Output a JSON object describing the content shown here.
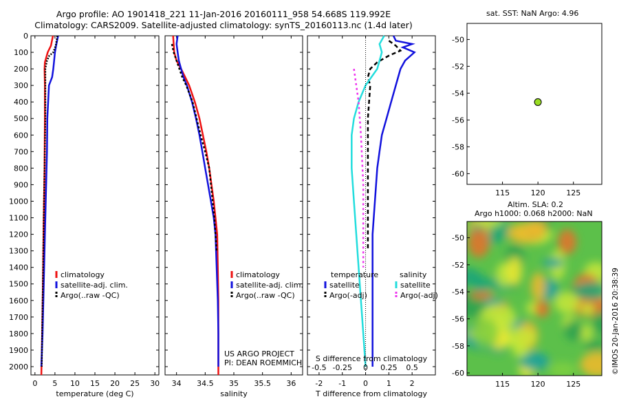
{
  "title_line1": "Argo profile: AO 1901418_221 11-Jan-2016 20160111_958 54.668S 119.992E",
  "title_line2": "Climatology: CARS2009. Satellite-adjusted climatology: synTS_20160113.nc (1.4d later)",
  "sst_title": "sat. SST: NaN Argo: 4.96",
  "sla_title_1": "Altim. SLA: 0.2",
  "sla_title_2": "Argo h1000: 0.068 h2000: NaN",
  "side_stamp": "©IMOS 20-Jan-2016 20:38:39",
  "project_line1": "US ARGO PROJECT",
  "project_line2": "PI: DEAN ROEMMICH",
  "colors": {
    "clim": "#ee1111",
    "sat": "#1111dd",
    "argo": "#000000",
    "sat_s": "#22dddd",
    "argo_s": "#ee33ee"
  },
  "chart_data": [
    {
      "type": "line",
      "panel": "temperature",
      "xlabel": "temperature (deg C)",
      "xlim": [
        -1,
        31
      ],
      "ylim": [
        2050,
        0
      ],
      "xticks": [
        "0",
        "5",
        "10",
        "15",
        "20",
        "25",
        "30"
      ],
      "yticks": [
        "0",
        "100",
        "200",
        "300",
        "400",
        "500",
        "600",
        "700",
        "800",
        "900",
        "1000",
        "1100",
        "1200",
        "1300",
        "1400",
        "1500",
        "1600",
        "1700",
        "1800",
        "1900",
        "2000"
      ],
      "legend": [
        "climatology",
        "satellite-adj. clim.",
        "Argo(..raw -QC)"
      ],
      "series": [
        {
          "name": "climatology",
          "color": "clim",
          "dash": "",
          "points": [
            [
              4.5,
              0
            ],
            [
              4.0,
              60
            ],
            [
              3.2,
              100
            ],
            [
              2.5,
              160
            ],
            [
              2.4,
              200
            ],
            [
              2.5,
              300
            ],
            [
              2.5,
              500
            ],
            [
              2.4,
              800
            ],
            [
              2.2,
              1100
            ],
            [
              2.0,
              1500
            ],
            [
              1.8,
              1800
            ],
            [
              1.6,
              2050
            ]
          ]
        },
        {
          "name": "satellite-adj. clim.",
          "color": "sat",
          "dash": "",
          "points": [
            [
              5.8,
              0
            ],
            [
              5.3,
              60
            ],
            [
              5.0,
              100
            ],
            [
              4.8,
              150
            ],
            [
              4.6,
              200
            ],
            [
              4.3,
              250
            ],
            [
              3.5,
              300
            ],
            [
              3.3,
              400
            ],
            [
              3.1,
              500
            ],
            [
              3.0,
              700
            ],
            [
              2.8,
              900
            ],
            [
              2.5,
              1200
            ],
            [
              2.2,
              1500
            ],
            [
              1.9,
              1800
            ],
            [
              1.6,
              2000
            ]
          ]
        },
        {
          "name": "Argo(..raw -QC)",
          "color": "argo",
          "dash": "2,2",
          "points": [
            [
              5.6,
              0
            ],
            [
              5.2,
              60
            ],
            [
              4.6,
              100
            ],
            [
              3.6,
              120
            ],
            [
              3.0,
              150
            ],
            [
              2.6,
              200
            ],
            [
              2.6,
              300
            ],
            [
              2.6,
              500
            ],
            [
              2.4,
              800
            ],
            [
              2.2,
              1100
            ],
            [
              2.0,
              1500
            ],
            [
              1.8,
              1800
            ],
            [
              1.7,
              2000
            ]
          ]
        }
      ]
    },
    {
      "type": "line",
      "panel": "salinity",
      "xlabel": "salinity",
      "xlim": [
        33.8,
        36.2
      ],
      "ylim": [
        2050,
        0
      ],
      "xticks": [
        "34",
        "34.5",
        "35",
        "35.5",
        "36"
      ],
      "legend": [
        "climatology",
        "satellite-adj. clim.",
        "Argo(..raw -QC)"
      ],
      "series": [
        {
          "name": "climatology",
          "color": "clim",
          "dash": "",
          "points": [
            [
              33.94,
              0
            ],
            [
              33.96,
              100
            ],
            [
              34.0,
              150
            ],
            [
              34.08,
              200
            ],
            [
              34.15,
              250
            ],
            [
              34.22,
              300
            ],
            [
              34.32,
              400
            ],
            [
              34.4,
              500
            ],
            [
              34.46,
              600
            ],
            [
              34.52,
              700
            ],
            [
              34.57,
              800
            ],
            [
              34.61,
              900
            ],
            [
              34.65,
              1000
            ],
            [
              34.68,
              1100
            ],
            [
              34.71,
              1200
            ],
            [
              34.72,
              1400
            ],
            [
              34.73,
              1600
            ],
            [
              34.73,
              1800
            ],
            [
              34.73,
              2050
            ]
          ]
        },
        {
          "name": "satellite-adj. clim.",
          "color": "sat",
          "dash": "",
          "points": [
            [
              34.02,
              0
            ],
            [
              34.0,
              50
            ],
            [
              34.02,
              100
            ],
            [
              34.04,
              150
            ],
            [
              34.08,
              200
            ],
            [
              34.12,
              250
            ],
            [
              34.18,
              300
            ],
            [
              34.27,
              400
            ],
            [
              34.34,
              500
            ],
            [
              34.4,
              600
            ],
            [
              34.45,
              700
            ],
            [
              34.5,
              800
            ],
            [
              34.55,
              900
            ],
            [
              34.6,
              1000
            ],
            [
              34.65,
              1100
            ],
            [
              34.68,
              1200
            ],
            [
              34.7,
              1400
            ],
            [
              34.72,
              1600
            ],
            [
              34.73,
              1800
            ],
            [
              34.73,
              2000
            ]
          ]
        },
        {
          "name": "Argo(..raw -QC)",
          "color": "argo",
          "dash": "3,3",
          "points": [
            [
              33.92,
              50
            ],
            [
              33.95,
              100
            ],
            [
              34.0,
              150
            ],
            [
              34.05,
              200
            ],
            [
              34.1,
              250
            ],
            [
              34.17,
              300
            ],
            [
              34.28,
              400
            ],
            [
              34.35,
              500
            ],
            [
              34.42,
              600
            ],
            [
              34.5,
              700
            ],
            [
              34.57,
              800
            ],
            [
              34.6,
              900
            ],
            [
              34.63,
              1000
            ],
            [
              34.66,
              1100
            ],
            [
              34.68,
              1200
            ],
            [
              34.7,
              1300
            ]
          ]
        }
      ]
    },
    {
      "type": "line",
      "panel": "difference",
      "xlabel": "T difference from climatology",
      "xlabel_top": "S difference from climatology",
      "xlim": [
        -2.5,
        3.0
      ],
      "ylim": [
        2050,
        0
      ],
      "xticks": [
        "-2",
        "-1",
        "0",
        "1",
        "2"
      ],
      "xticks_s": [
        "-0.5",
        "-0.25",
        "0",
        "0.25",
        "0.5"
      ],
      "legend_left_title": "temperature",
      "legend_right_title": "salinity",
      "legend": [
        "satellite",
        "Argo(-adj)",
        "satellite",
        "Argo(-adj)"
      ],
      "series": [
        {
          "name": "satellite",
          "color": "sat",
          "dash": "",
          "points": [
            [
              1.2,
              0
            ],
            [
              1.3,
              30
            ],
            [
              2.0,
              50
            ],
            [
              1.6,
              70
            ],
            [
              2.1,
              100
            ],
            [
              1.7,
              150
            ],
            [
              1.5,
              200
            ],
            [
              1.4,
              250
            ],
            [
              1.3,
              300
            ],
            [
              1.1,
              400
            ],
            [
              0.9,
              500
            ],
            [
              0.7,
              600
            ],
            [
              0.6,
              700
            ],
            [
              0.5,
              800
            ],
            [
              0.4,
              1000
            ],
            [
              0.3,
              1200
            ],
            [
              0.3,
              1500
            ],
            [
              0.3,
              1800
            ],
            [
              0.3,
              2000
            ]
          ]
        },
        {
          "name": "Argo(-adj)",
          "color": "argo",
          "dash": "6,4",
          "points": [
            [
              1.0,
              30
            ],
            [
              1.3,
              60
            ],
            [
              1.5,
              90
            ],
            [
              1.0,
              120
            ],
            [
              0.5,
              160
            ],
            [
              0.2,
              200
            ],
            [
              0.1,
              250
            ],
            [
              0.2,
              300
            ],
            [
              0.15,
              400
            ],
            [
              0.1,
              500
            ],
            [
              0.1,
              700
            ],
            [
              0.1,
              1000
            ],
            [
              0.1,
              1300
            ]
          ]
        },
        {
          "name": "satellite",
          "color": "sat_s",
          "dash": "",
          "points": [
            [
              0.8,
              0
            ],
            [
              0.6,
              50
            ],
            [
              0.7,
              100
            ],
            [
              0.5,
              200
            ],
            [
              0.0,
              300
            ],
            [
              -0.3,
              400
            ],
            [
              -0.5,
              500
            ],
            [
              -0.6,
              600
            ],
            [
              -0.6,
              800
            ],
            [
              -0.5,
              1000
            ],
            [
              -0.4,
              1200
            ],
            [
              -0.3,
              1400
            ],
            [
              -0.2,
              1600
            ],
            [
              -0.1,
              1800
            ],
            [
              0.0,
              2000
            ]
          ]
        },
        {
          "name": "Argo(-adj)",
          "color": "argo_s",
          "dash": "3,4",
          "points": [
            [
              -0.5,
              200
            ],
            [
              -0.4,
              300
            ],
            [
              -0.3,
              400
            ],
            [
              -0.2,
              600
            ],
            [
              -0.1,
              900
            ],
            [
              -0.1,
              1200
            ],
            [
              -0.1,
              1400
            ]
          ]
        }
      ]
    },
    {
      "type": "scatter",
      "panel": "location",
      "xlim": [
        110,
        129
      ],
      "ylim": [
        -60.8,
        -48.8
      ],
      "xticks": [
        "115",
        "120",
        "125"
      ],
      "yticks": [
        "-50",
        "-52",
        "-54",
        "-56",
        "-58",
        "-60"
      ],
      "points": [
        [
          119.992,
          -54.668
        ]
      ]
    },
    {
      "type": "heatmap",
      "panel": "sea level anomaly",
      "xlim": [
        110,
        129
      ],
      "ylim": [
        -60.2,
        -48.8
      ],
      "xticks": [
        "115",
        "120",
        "125"
      ],
      "yticks": [
        "-50",
        "-52",
        "-54",
        "-56",
        "-58",
        "-60"
      ]
    }
  ]
}
